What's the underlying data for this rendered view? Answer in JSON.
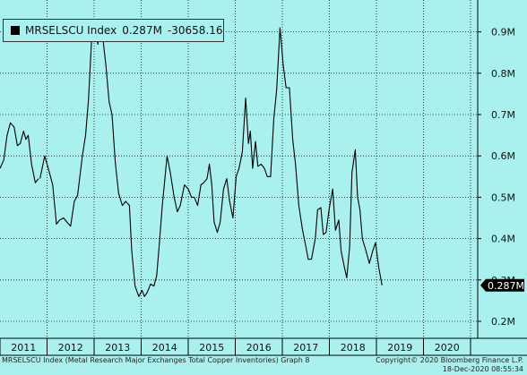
{
  "legend": {
    "ticker": "MRSELSCU Index",
    "last_value": "0.287M",
    "change": "-30658.16"
  },
  "footer": {
    "description": "MRSELSCU Index (Metal Research Major Exchanges Total Copper Inventories) Graph 8",
    "copyright": "Copyright© 2020 Bloomberg Finance L.P.",
    "timestamp": "18-Dec-2020 08:55:34"
  },
  "colors": {
    "background": "#aaf0ef",
    "line": "#000000",
    "grid": "#000000",
    "last_label_bg": "#000000"
  },
  "chart_data": {
    "type": "line",
    "x_unit": "year",
    "y_unit": "M",
    "ylim": [
      0.17,
      1.0
    ],
    "xlim": [
      2010.5,
      2021.02
    ],
    "y_ticks": [
      {
        "value": 0.2,
        "label": "0.2M"
      },
      {
        "value": 0.3,
        "label": "0.3M"
      },
      {
        "value": 0.4,
        "label": "0.4M"
      },
      {
        "value": 0.5,
        "label": "0.5M"
      },
      {
        "value": 0.6,
        "label": "0.6M"
      },
      {
        "value": 0.7,
        "label": "0.7M"
      },
      {
        "value": 0.8,
        "label": "0.8M"
      },
      {
        "value": 0.9,
        "label": "0.9M"
      }
    ],
    "x_labels": [
      "2011",
      "2012",
      "2013",
      "2014",
      "2015",
      "2016",
      "2017",
      "2018",
      "2019",
      "2020"
    ],
    "grid": "dotted",
    "last_value_label": "0.287M",
    "series": [
      {
        "values": [
          [
            2010.5,
            0.57
          ],
          [
            2010.58,
            0.59
          ],
          [
            2010.65,
            0.65
          ],
          [
            2010.72,
            0.68
          ],
          [
            2010.8,
            0.67
          ],
          [
            2010.87,
            0.625
          ],
          [
            2010.93,
            0.63
          ],
          [
            2011.0,
            0.66
          ],
          [
            2011.05,
            0.64
          ],
          [
            2011.1,
            0.65
          ],
          [
            2011.17,
            0.58
          ],
          [
            2011.25,
            0.535
          ],
          [
            2011.32,
            0.545
          ],
          [
            2011.35,
            0.545
          ],
          [
            2011.45,
            0.6
          ],
          [
            2011.55,
            0.56
          ],
          [
            2011.62,
            0.53
          ],
          [
            2011.7,
            0.435
          ],
          [
            2011.77,
            0.445
          ],
          [
            2011.85,
            0.45
          ],
          [
            2011.92,
            0.44
          ],
          [
            2012.0,
            0.43
          ],
          [
            2012.08,
            0.49
          ],
          [
            2012.15,
            0.505
          ],
          [
            2012.25,
            0.6
          ],
          [
            2012.32,
            0.65
          ],
          [
            2012.38,
            0.735
          ],
          [
            2012.45,
            0.89
          ],
          [
            2012.52,
            0.93
          ],
          [
            2012.58,
            0.87
          ],
          [
            2012.63,
            0.925
          ],
          [
            2012.68,
            0.89
          ],
          [
            2012.75,
            0.82
          ],
          [
            2012.82,
            0.73
          ],
          [
            2012.88,
            0.7
          ],
          [
            2012.95,
            0.585
          ],
          [
            2013.02,
            0.51
          ],
          [
            2013.1,
            0.48
          ],
          [
            2013.17,
            0.49
          ],
          [
            2013.25,
            0.48
          ],
          [
            2013.3,
            0.37
          ],
          [
            2013.37,
            0.285
          ],
          [
            2013.45,
            0.26
          ],
          [
            2013.52,
            0.275
          ],
          [
            2013.57,
            0.26
          ],
          [
            2013.63,
            0.27
          ],
          [
            2013.7,
            0.29
          ],
          [
            2013.77,
            0.285
          ],
          [
            2013.83,
            0.31
          ],
          [
            2013.88,
            0.38
          ],
          [
            2013.95,
            0.48
          ],
          [
            2014.05,
            0.6
          ],
          [
            2014.12,
            0.56
          ],
          [
            2014.2,
            0.5
          ],
          [
            2014.27,
            0.465
          ],
          [
            2014.33,
            0.48
          ],
          [
            2014.42,
            0.53
          ],
          [
            2014.5,
            0.52
          ],
          [
            2014.57,
            0.5
          ],
          [
            2014.63,
            0.5
          ],
          [
            2014.7,
            0.48
          ],
          [
            2014.77,
            0.53
          ],
          [
            2014.83,
            0.535
          ],
          [
            2014.9,
            0.545
          ],
          [
            2014.95,
            0.58
          ],
          [
            2015.0,
            0.53
          ],
          [
            2015.05,
            0.44
          ],
          [
            2015.12,
            0.415
          ],
          [
            2015.18,
            0.44
          ],
          [
            2015.25,
            0.52
          ],
          [
            2015.32,
            0.545
          ],
          [
            2015.38,
            0.49
          ],
          [
            2015.45,
            0.45
          ],
          [
            2015.52,
            0.55
          ],
          [
            2015.58,
            0.57
          ],
          [
            2015.65,
            0.61
          ],
          [
            2015.72,
            0.74
          ],
          [
            2015.78,
            0.63
          ],
          [
            2015.82,
            0.66
          ],
          [
            2015.87,
            0.57
          ],
          [
            2015.93,
            0.635
          ],
          [
            2015.98,
            0.575
          ],
          [
            2016.05,
            0.58
          ],
          [
            2016.12,
            0.57
          ],
          [
            2016.18,
            0.55
          ],
          [
            2016.25,
            0.55
          ],
          [
            2016.32,
            0.69
          ],
          [
            2016.38,
            0.76
          ],
          [
            2016.45,
            0.91
          ],
          [
            2016.52,
            0.82
          ],
          [
            2016.58,
            0.765
          ],
          [
            2016.65,
            0.765
          ],
          [
            2016.72,
            0.64
          ],
          [
            2016.78,
            0.58
          ],
          [
            2016.85,
            0.48
          ],
          [
            2016.93,
            0.42
          ],
          [
            2017.0,
            0.38
          ],
          [
            2017.05,
            0.35
          ],
          [
            2017.12,
            0.35
          ],
          [
            2017.2,
            0.4
          ],
          [
            2017.25,
            0.47
          ],
          [
            2017.32,
            0.475
          ],
          [
            2017.37,
            0.41
          ],
          [
            2017.43,
            0.415
          ],
          [
            2017.5,
            0.475
          ],
          [
            2017.57,
            0.52
          ],
          [
            2017.63,
            0.42
          ],
          [
            2017.7,
            0.445
          ],
          [
            2017.75,
            0.37
          ],
          [
            2017.82,
            0.33
          ],
          [
            2017.87,
            0.305
          ],
          [
            2017.93,
            0.38
          ],
          [
            2017.98,
            0.56
          ],
          [
            2018.05,
            0.615
          ],
          [
            2018.1,
            0.5
          ],
          [
            2018.15,
            0.47
          ],
          [
            2018.2,
            0.4
          ],
          [
            2018.28,
            0.37
          ],
          [
            2018.35,
            0.34
          ],
          [
            2018.42,
            0.37
          ],
          [
            2018.48,
            0.39
          ],
          [
            2018.55,
            0.33
          ],
          [
            2018.62,
            0.287
          ]
        ]
      }
    ]
  }
}
